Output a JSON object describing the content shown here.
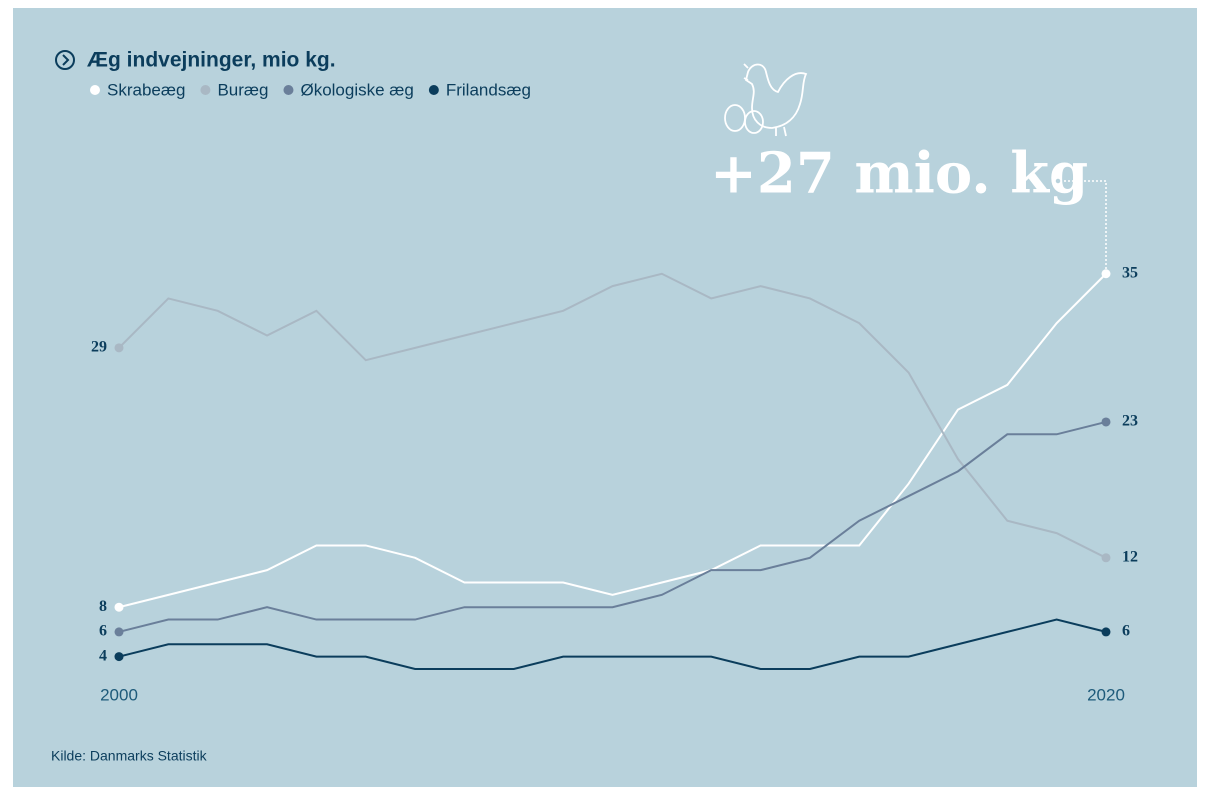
{
  "chart_data": {
    "type": "line",
    "title": "Æg indvejninger, mio kg.",
    "annotation": "+27 mio. kg",
    "source": "Kilde: Danmarks Statistik",
    "x": [
      2000,
      2001,
      2002,
      2003,
      2004,
      2005,
      2006,
      2007,
      2008,
      2009,
      2010,
      2011,
      2012,
      2013,
      2014,
      2015,
      2016,
      2017,
      2018,
      2019,
      2020
    ],
    "xlim": [
      2000,
      2020
    ],
    "xticks": [
      2000,
      2020
    ],
    "ylim": [
      0,
      40
    ],
    "series": [
      {
        "name": "Skrabeæg",
        "color": "#ffffff",
        "values": [
          8,
          9,
          10,
          11,
          13,
          13,
          12,
          10,
          10,
          10,
          9,
          10,
          11,
          13,
          13,
          13,
          18,
          24,
          26,
          31,
          35
        ]
      },
      {
        "name": "Buræg",
        "color": "#a9b8c4",
        "values": [
          29,
          33,
          32,
          30,
          32,
          28,
          29,
          30,
          31,
          32,
          34,
          35,
          33,
          34,
          33,
          31,
          27,
          20,
          15,
          14,
          12
        ]
      },
      {
        "name": "Økologiske æg",
        "color": "#6a7f9a",
        "values": [
          6,
          7,
          7,
          8,
          7,
          7,
          7,
          8,
          8,
          8,
          8,
          9,
          11,
          11,
          12,
          15,
          17,
          19,
          22,
          22,
          23
        ]
      },
      {
        "name": "Frilandsæg",
        "color": "#0b3d5c",
        "values": [
          4,
          5,
          5,
          5,
          4,
          4,
          3,
          3,
          3,
          4,
          4,
          4,
          4,
          3,
          3,
          4,
          4,
          5,
          6,
          7,
          6
        ]
      }
    ]
  }
}
